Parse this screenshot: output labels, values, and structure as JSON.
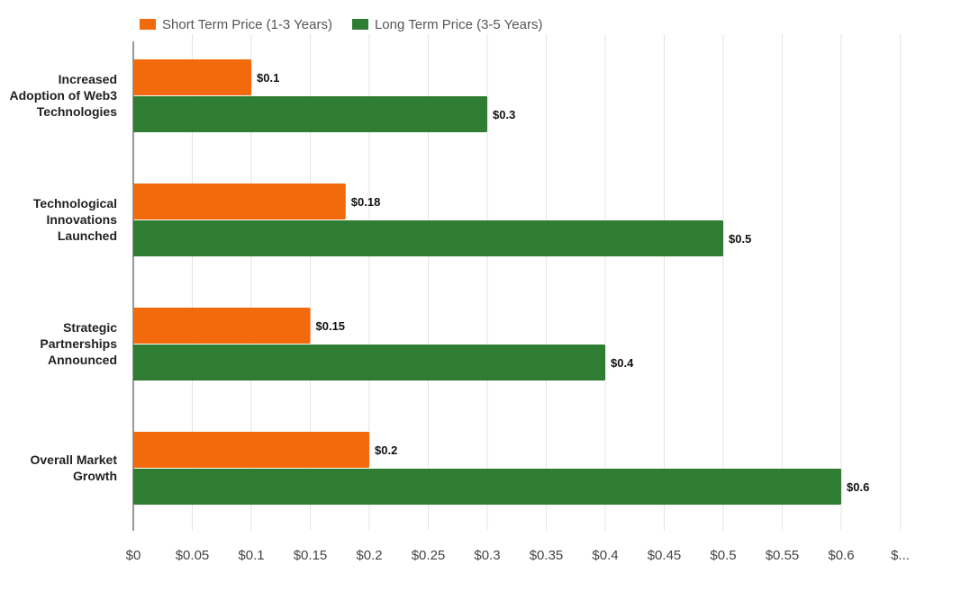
{
  "chart_data": {
    "type": "bar",
    "orientation": "horizontal",
    "categories": [
      "Increased Adoption of Web3 Technologies",
      "Technological Innovations Launched",
      "Strategic Partnerships Announced",
      "Overall Market Growth"
    ],
    "series": [
      {
        "name": "Short Term Price (1-3 Years)",
        "color": "#f26a0c",
        "values": [
          0.1,
          0.18,
          0.15,
          0.2
        ],
        "labels": [
          "$0.1",
          "$0.18",
          "$0.15",
          "$0.2"
        ]
      },
      {
        "name": "Long Term Price (3-5 Years)",
        "color": "#2e7d32",
        "values": [
          0.3,
          0.5,
          0.4,
          0.6
        ],
        "labels": [
          "$0.3",
          "$0.5",
          "$0.4",
          "$0.6"
        ]
      }
    ],
    "x_ticks": [
      {
        "value": 0,
        "label": "$0"
      },
      {
        "value": 0.05,
        "label": "$0.05"
      },
      {
        "value": 0.1,
        "label": "$0.1"
      },
      {
        "value": 0.15,
        "label": "$0.15"
      },
      {
        "value": 0.2,
        "label": "$0.2"
      },
      {
        "value": 0.25,
        "label": "$0.25"
      },
      {
        "value": 0.3,
        "label": "$0.3"
      },
      {
        "value": 0.35,
        "label": "$0.35"
      },
      {
        "value": 0.4,
        "label": "$0.4"
      },
      {
        "value": 0.45,
        "label": "$0.45"
      },
      {
        "value": 0.5,
        "label": "$0.5"
      },
      {
        "value": 0.55,
        "label": "$0.55"
      },
      {
        "value": 0.6,
        "label": "$0.6"
      },
      {
        "value": 0.65,
        "label": "$..."
      }
    ],
    "xlim": [
      0,
      0.65
    ],
    "grid": true,
    "legend_position": "top-left",
    "title": "",
    "xlabel": "",
    "ylabel": ""
  }
}
